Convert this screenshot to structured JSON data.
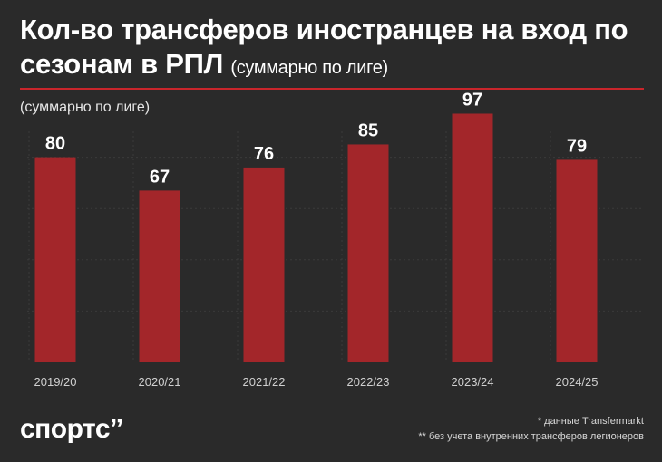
{
  "header": {
    "title_main": "Кол-во трансферов иностранцев на вход по сезонам в РПЛ",
    "title_sub": "(суммарно по лиге)",
    "subtitle": "(суммарно по лиге)"
  },
  "footer": {
    "logo": "спортс’’",
    "note1": "* данные Transfermarkt",
    "note2": "** без учета внутренних трансферов легионеров"
  },
  "colors": {
    "background": "#2a2a2a",
    "bar": "#a3262a",
    "accent": "#c9252b"
  },
  "chart_data": {
    "type": "bar",
    "title": "Кол-во трансферов иностранцев на вход по сезонам в РПЛ",
    "subtitle": "(суммарно по лиге)",
    "categories": [
      "2019/20",
      "2020/21",
      "2021/22",
      "2022/23",
      "2023/24",
      "2024/25"
    ],
    "values": [
      80,
      67,
      76,
      85,
      97,
      79
    ],
    "xlabel": "",
    "ylabel": "",
    "ylim": [
      0,
      100
    ],
    "grid": true
  }
}
